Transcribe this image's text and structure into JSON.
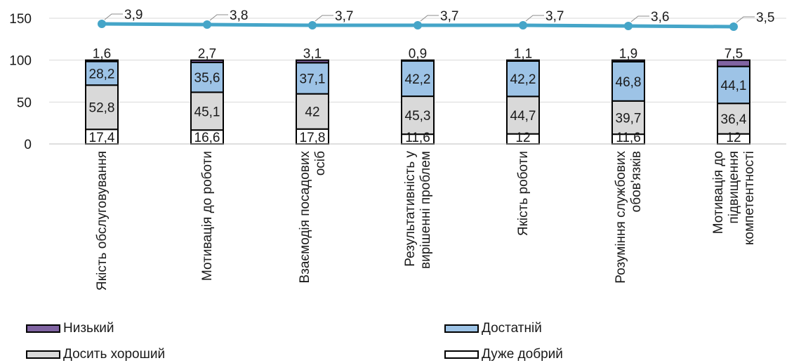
{
  "chart_data": {
    "type": "bar",
    "stacked": true,
    "categories": [
      "Якість обслуговування",
      "Мотивація до роботи",
      "Взаємодія посадових осіб",
      "Результативність у вирішенні проблем",
      "Якість роботи",
      "Розуміння службових обов'язків",
      "Мотивація до підвищення компетентності"
    ],
    "category_lines": [
      [
        "Якість обслуговування"
      ],
      [
        "Мотивація до роботи"
      ],
      [
        "Взаємодія посадових",
        "осіб"
      ],
      [
        "Результативність у",
        "вирішенні проблем"
      ],
      [
        "Якість роботи"
      ],
      [
        "Розуміння службових",
        "обов'язків"
      ],
      [
        "Мотивація до",
        "підвищення",
        "компетентності"
      ]
    ],
    "series": [
      {
        "name": "Дуже добрий",
        "color": "#ffffff",
        "values": [
          17.4,
          16.6,
          17.8,
          11.6,
          12,
          11.6,
          12
        ],
        "labels": [
          "17,4",
          "16,6",
          "17,8",
          "11,6",
          "12",
          "11,6",
          "12"
        ]
      },
      {
        "name": "Досить хороший",
        "color": "#d9d9d9",
        "values": [
          52.8,
          45.1,
          42,
          45.3,
          44.7,
          39.7,
          36.4
        ],
        "labels": [
          "52,8",
          "45,1",
          "42",
          "45,3",
          "44,7",
          "39,7",
          "36,4"
        ]
      },
      {
        "name": "Достатній",
        "color": "#9dc3e6",
        "values": [
          28.2,
          35.6,
          37.1,
          42.2,
          42.2,
          46.8,
          44.1
        ],
        "labels": [
          "28,2",
          "35,6",
          "37,1",
          "42,2",
          "42,2",
          "46,8",
          "44,1"
        ]
      },
      {
        "name": "Низький",
        "color": "#8064a2",
        "values": [
          1.6,
          2.7,
          3.1,
          0.9,
          1.1,
          1.9,
          7.5
        ],
        "labels": [
          "1,6",
          "2,7",
          "3,1",
          "0,9",
          "1,1",
          "1,9",
          "7,5"
        ]
      }
    ],
    "line": {
      "color": "#45a5c8",
      "values": [
        3.9,
        3.8,
        3.7,
        3.7,
        3.7,
        3.6,
        3.5
      ],
      "labels": [
        "3,9",
        "3,8",
        "3,7",
        "3,7",
        "3,7",
        "3,6",
        "3,5"
      ]
    },
    "y_ticks": [
      "0",
      "50",
      "100",
      "150"
    ],
    "ylim": [
      0,
      150
    ],
    "legend_order": [
      "Низький",
      "Достатній",
      "Досить хороший",
      "Дуже добрий"
    ],
    "legend_position": "bottom"
  }
}
